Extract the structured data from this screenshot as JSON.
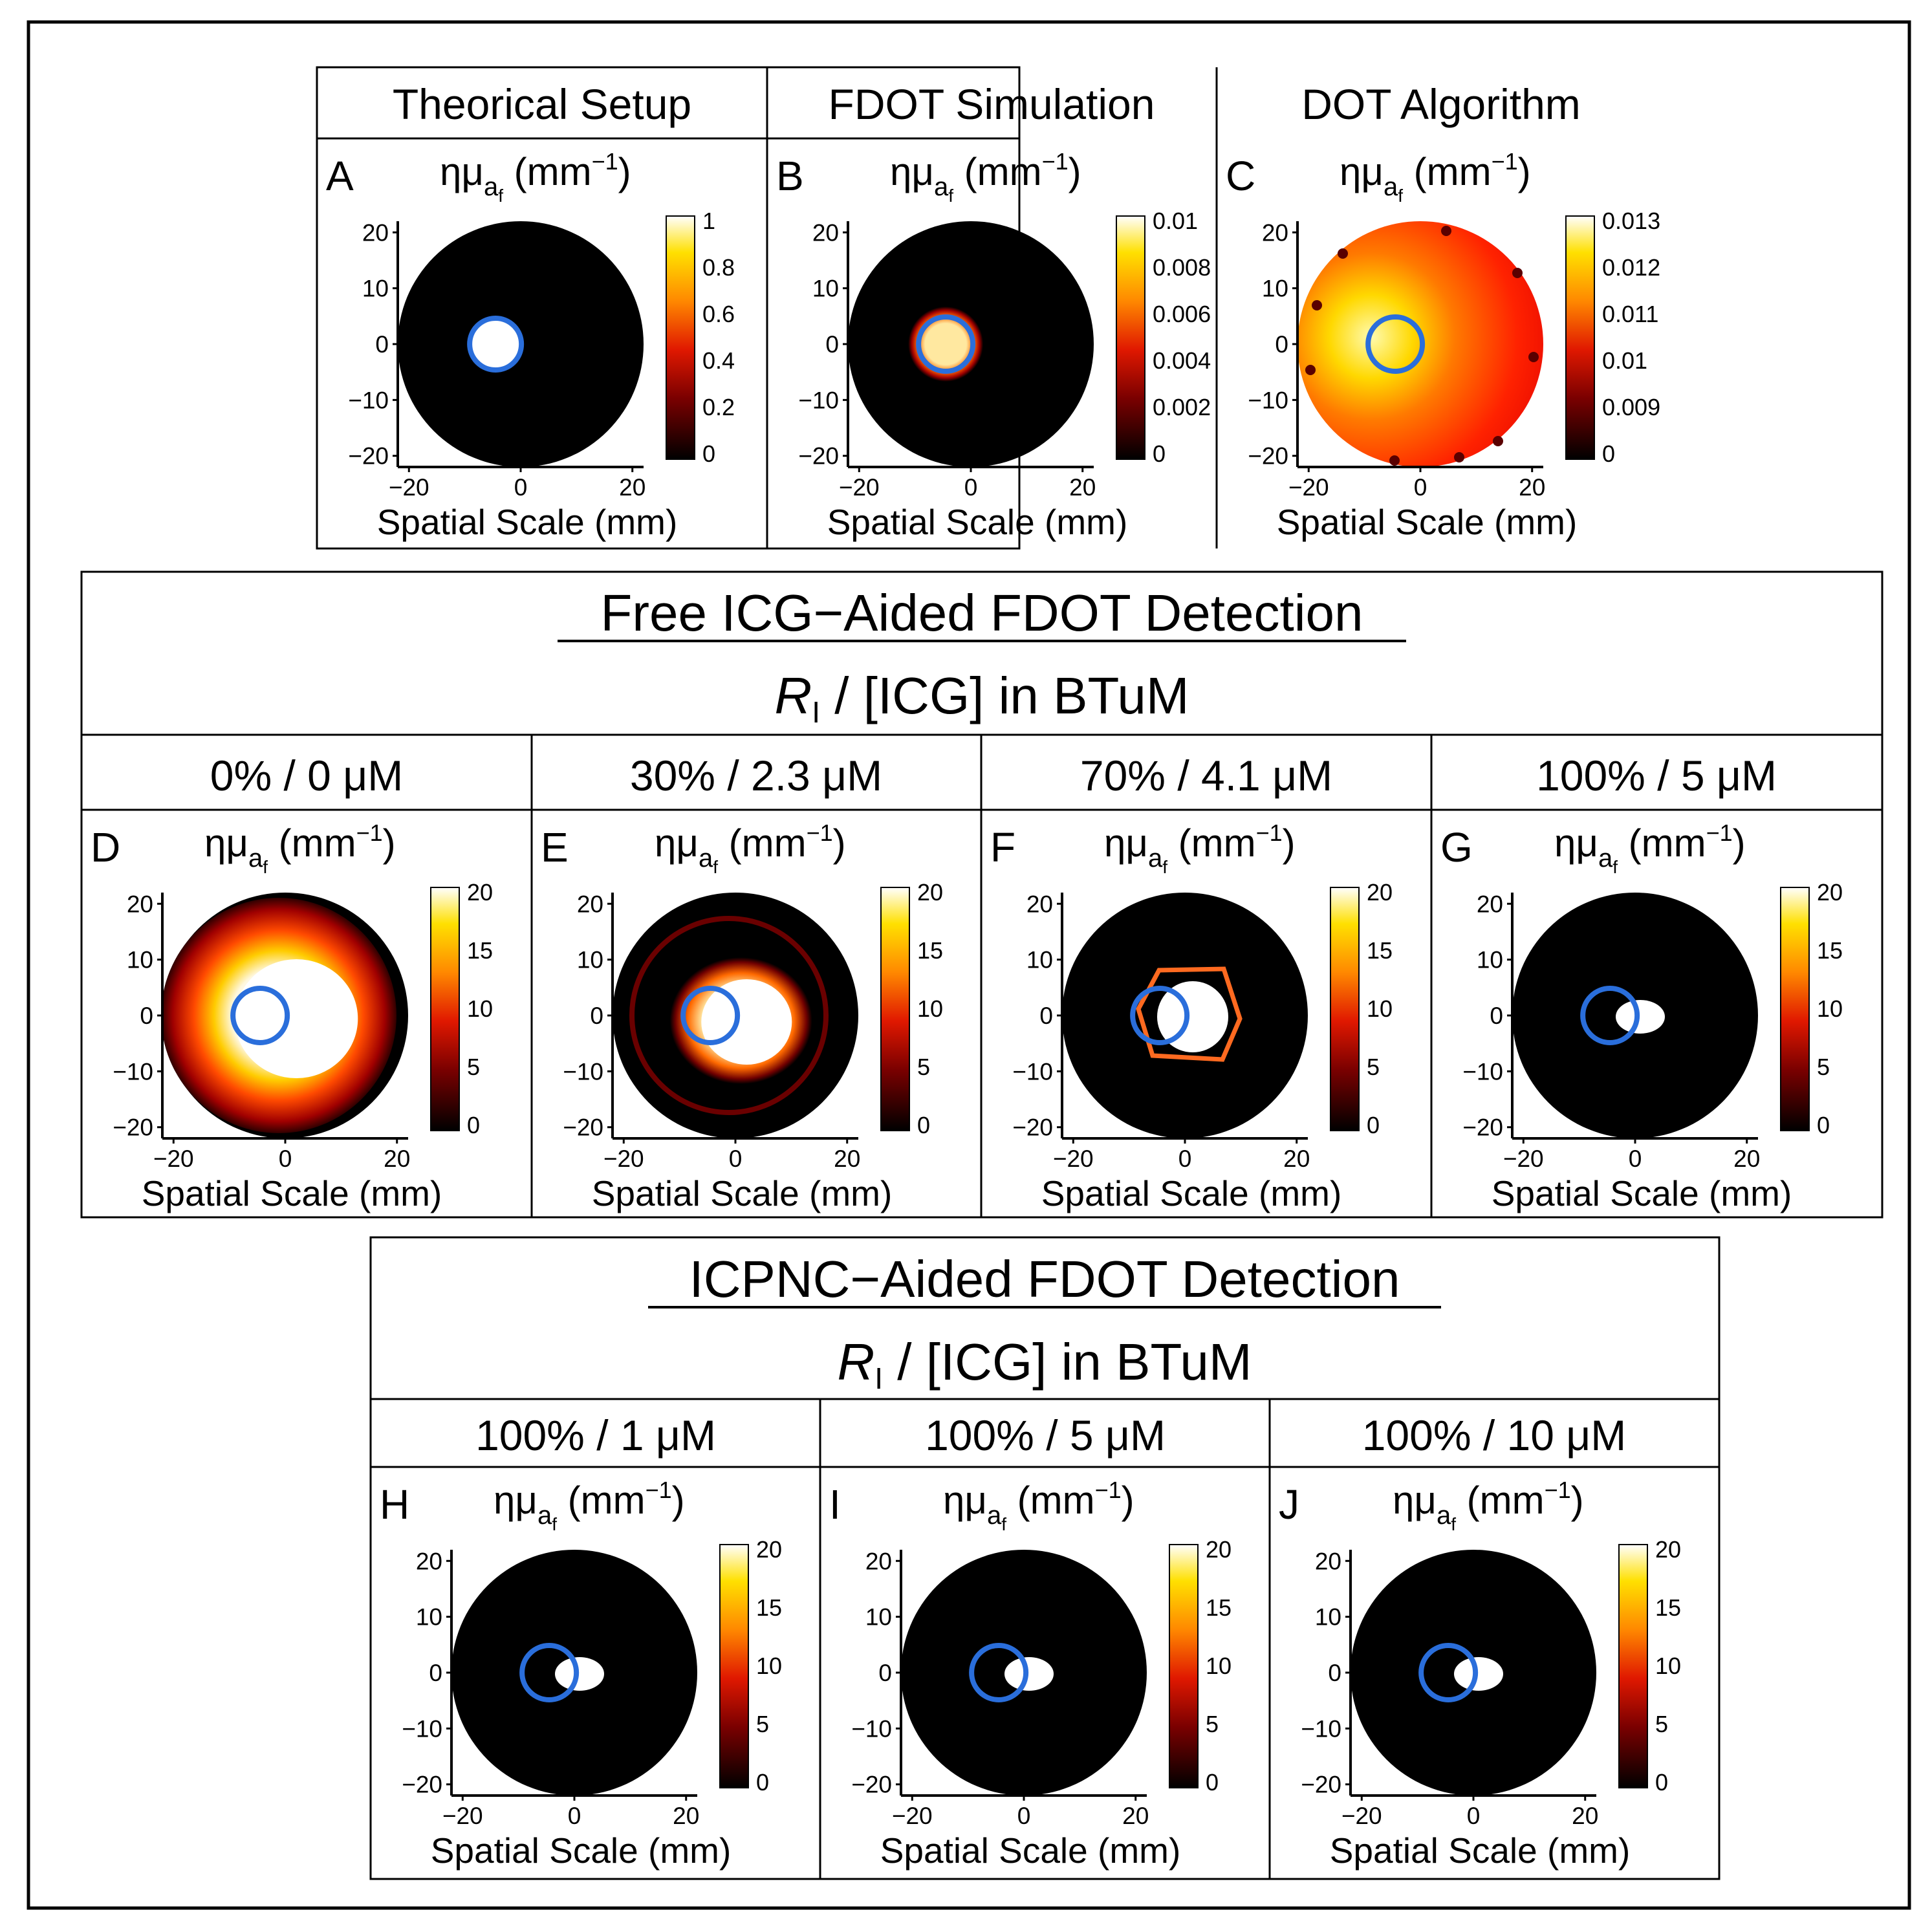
{
  "colors": {
    "circle": "#2a6edb",
    "frame": "#000000",
    "bg": "#ffffff"
  },
  "top": {
    "headers": [
      "Theorical Setup",
      "FDOT Simulation",
      "DOT Algorithm"
    ]
  },
  "sections": [
    {
      "title": "Free ICG−Aided FDOT Detection",
      "subtitle_var": "R",
      "subtitle_sub": "I",
      "subtitle_rest": " / [ICG] in BTuM",
      "headers": [
        "0% / 0 μM",
        "30% / 2.3 μM",
        "70% / 4.1 μM",
        "100% / 5 μM"
      ]
    },
    {
      "title": "ICPNC−Aided FDOT Detection",
      "subtitle_var": "R",
      "subtitle_sub": "I",
      "subtitle_rest": " / [ICG] in BTuM",
      "headers": [
        "100% / 1 μM",
        "100% / 5 μM",
        "100% / 10 μM"
      ]
    }
  ],
  "common": {
    "quantity": "ημ",
    "quantity_sub": "a",
    "quantity_subsub": "f",
    "unit_open": " (mm",
    "unit_exp": "−1",
    "unit_close": ")",
    "x_label": "Spatial  Scale (mm)",
    "axis_ticks": [
      "20",
      "10",
      "0",
      "−10",
      "−20"
    ],
    "x_ticks": [
      "−20",
      "0",
      "20"
    ]
  },
  "panels": [
    {
      "label": "A",
      "pattern": "setup",
      "cbar_ticks": [
        "1",
        "0.8",
        "0.6",
        "0.4",
        "0.2",
        "0"
      ]
    },
    {
      "label": "B",
      "pattern": "sim",
      "cbar_ticks": [
        "0.01",
        "0.008",
        "0.006",
        "0.004",
        "0.002",
        "0"
      ]
    },
    {
      "label": "C",
      "pattern": "dot",
      "cbar_ticks": [
        "0.013",
        "0.012",
        "0.011",
        "0.01",
        "0.009",
        "0"
      ]
    },
    {
      "label": "D",
      "pattern": "wide",
      "cbar_ticks": [
        "20",
        "15",
        "10",
        "5",
        "0"
      ]
    },
    {
      "label": "E",
      "pattern": "ring",
      "cbar_ticks": [
        "20",
        "15",
        "10",
        "5",
        "0"
      ]
    },
    {
      "label": "F",
      "pattern": "edge",
      "cbar_ticks": [
        "20",
        "15",
        "10",
        "5",
        "0"
      ]
    },
    {
      "label": "G",
      "pattern": "blob",
      "cbar_ticks": [
        "20",
        "15",
        "10",
        "5",
        "0"
      ]
    },
    {
      "label": "H",
      "pattern": "blob",
      "cbar_ticks": [
        "20",
        "15",
        "10",
        "5",
        "0"
      ]
    },
    {
      "label": "I",
      "pattern": "blob",
      "cbar_ticks": [
        "20",
        "15",
        "10",
        "5",
        "0"
      ]
    },
    {
      "label": "J",
      "pattern": "blob",
      "cbar_ticks": [
        "20",
        "15",
        "10",
        "5",
        "0"
      ]
    }
  ]
}
